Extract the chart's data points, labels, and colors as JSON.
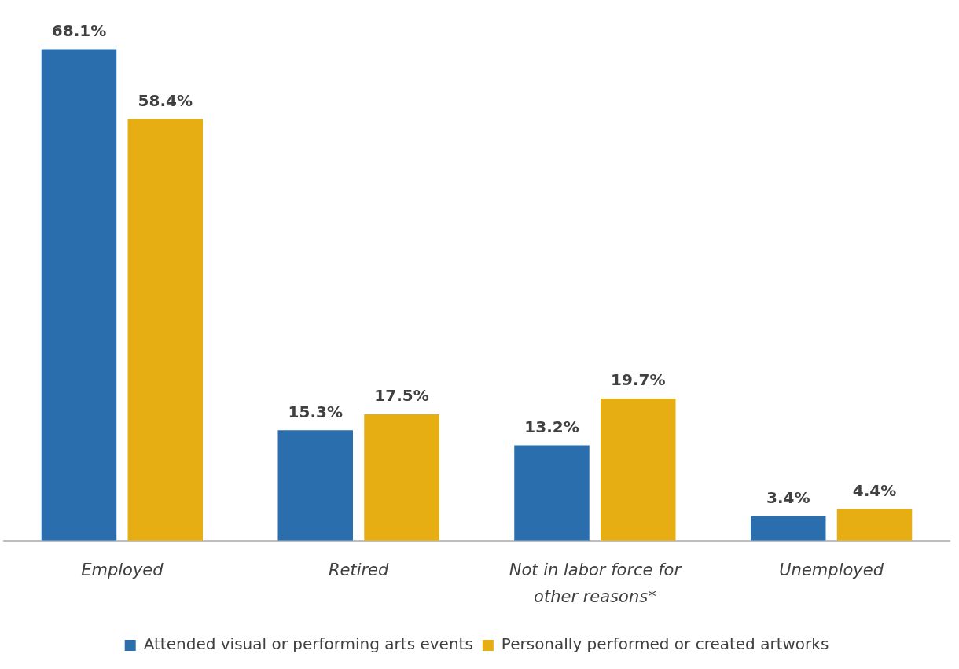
{
  "chart_data": {
    "type": "bar",
    "categories": [
      "Employed",
      "Retired",
      "Not in labor force for other reasons*",
      "Unemployed"
    ],
    "series": [
      {
        "name": "Attended visual or performing arts events",
        "color": "#2a6ead",
        "values": [
          68.1,
          15.3,
          13.2,
          3.4
        ],
        "value_labels": [
          "68.1%",
          "15.3%",
          "13.2%",
          "3.4%"
        ]
      },
      {
        "name": "Personally performed or created artworks",
        "color": "#e6ae12",
        "values": [
          58.4,
          17.5,
          19.7,
          4.4
        ],
        "value_labels": [
          "58.4%",
          "17.5%",
          "19.7%",
          "4.4%"
        ]
      }
    ],
    "grid": false,
    "legend": "bottom"
  }
}
